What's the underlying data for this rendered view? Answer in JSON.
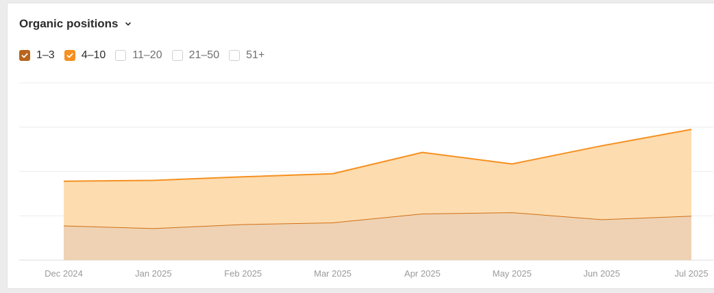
{
  "header": {
    "title": "Organic positions",
    "chevron_icon": "chevron-down-icon"
  },
  "legend": [
    {
      "label": "1–3",
      "checked": true,
      "color": "#b8651c"
    },
    {
      "label": "4–10",
      "checked": true,
      "color": "#f5901f"
    },
    {
      "label": "11–20",
      "checked": false,
      "color": "#cccccc"
    },
    {
      "label": "21–50",
      "checked": false,
      "color": "#cccccc"
    },
    {
      "label": "51+",
      "checked": false,
      "color": "#cccccc"
    }
  ],
  "chart_data": {
    "type": "area",
    "stacked": true,
    "categories": [
      "Dec 2024",
      "Jan 2025",
      "Feb 2025",
      "Mar 2025",
      "Apr 2025",
      "May 2025",
      "Jun 2025",
      "Jul 2025"
    ],
    "series": [
      {
        "name": "1–3",
        "values": [
          0.78,
          0.72,
          0.81,
          0.85,
          1.05,
          1.08,
          0.92,
          1.0
        ],
        "line_color": "#d06f12",
        "fill_color": "#efd2b3"
      },
      {
        "name": "4–10",
        "values": [
          1.0,
          1.08,
          1.07,
          1.1,
          1.38,
          1.09,
          1.66,
          1.95
        ],
        "line_color": "#f5901f",
        "fill_color": "#fddcb0"
      }
    ],
    "ylim": [
      0,
      4
    ],
    "y_tick_labels_visible": false,
    "grid": true
  }
}
